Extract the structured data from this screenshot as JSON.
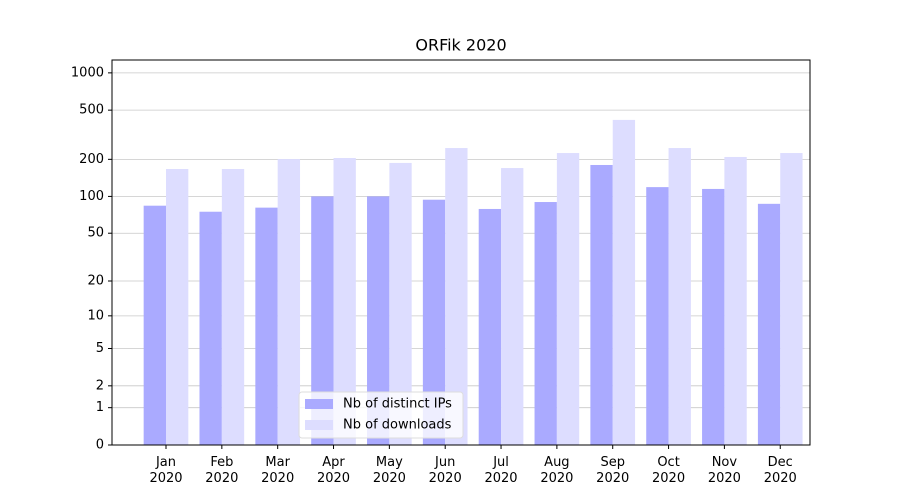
{
  "chart_data": {
    "type": "bar",
    "title": "ORFik 2020",
    "scale": "log1p",
    "categories": [
      "Jan\n2020",
      "Feb\n2020",
      "Mar\n2020",
      "Apr\n2020",
      "May\n2020",
      "Jun\n2020",
      "Jul\n2020",
      "Aug\n2020",
      "Sep\n2020",
      "Oct\n2020",
      "Nov\n2020",
      "Dec\n2020"
    ],
    "series": [
      {
        "name": "Nb of distinct IPs",
        "color": "#aaaaff",
        "values": [
          84,
          75,
          81,
          100,
          100,
          94,
          79,
          90,
          180,
          119,
          115,
          87
        ]
      },
      {
        "name": "Nb of downloads",
        "color": "#ddddff",
        "values": [
          167,
          167,
          201,
          205,
          187,
          247,
          170,
          225,
          417,
          247,
          209,
          225
        ]
      }
    ],
    "ylim": [
      0,
      1270
    ],
    "yticks": [
      0,
      1,
      2,
      5,
      10,
      20,
      50,
      100,
      200,
      500,
      1000
    ],
    "grid": true,
    "legend": "lower center"
  }
}
